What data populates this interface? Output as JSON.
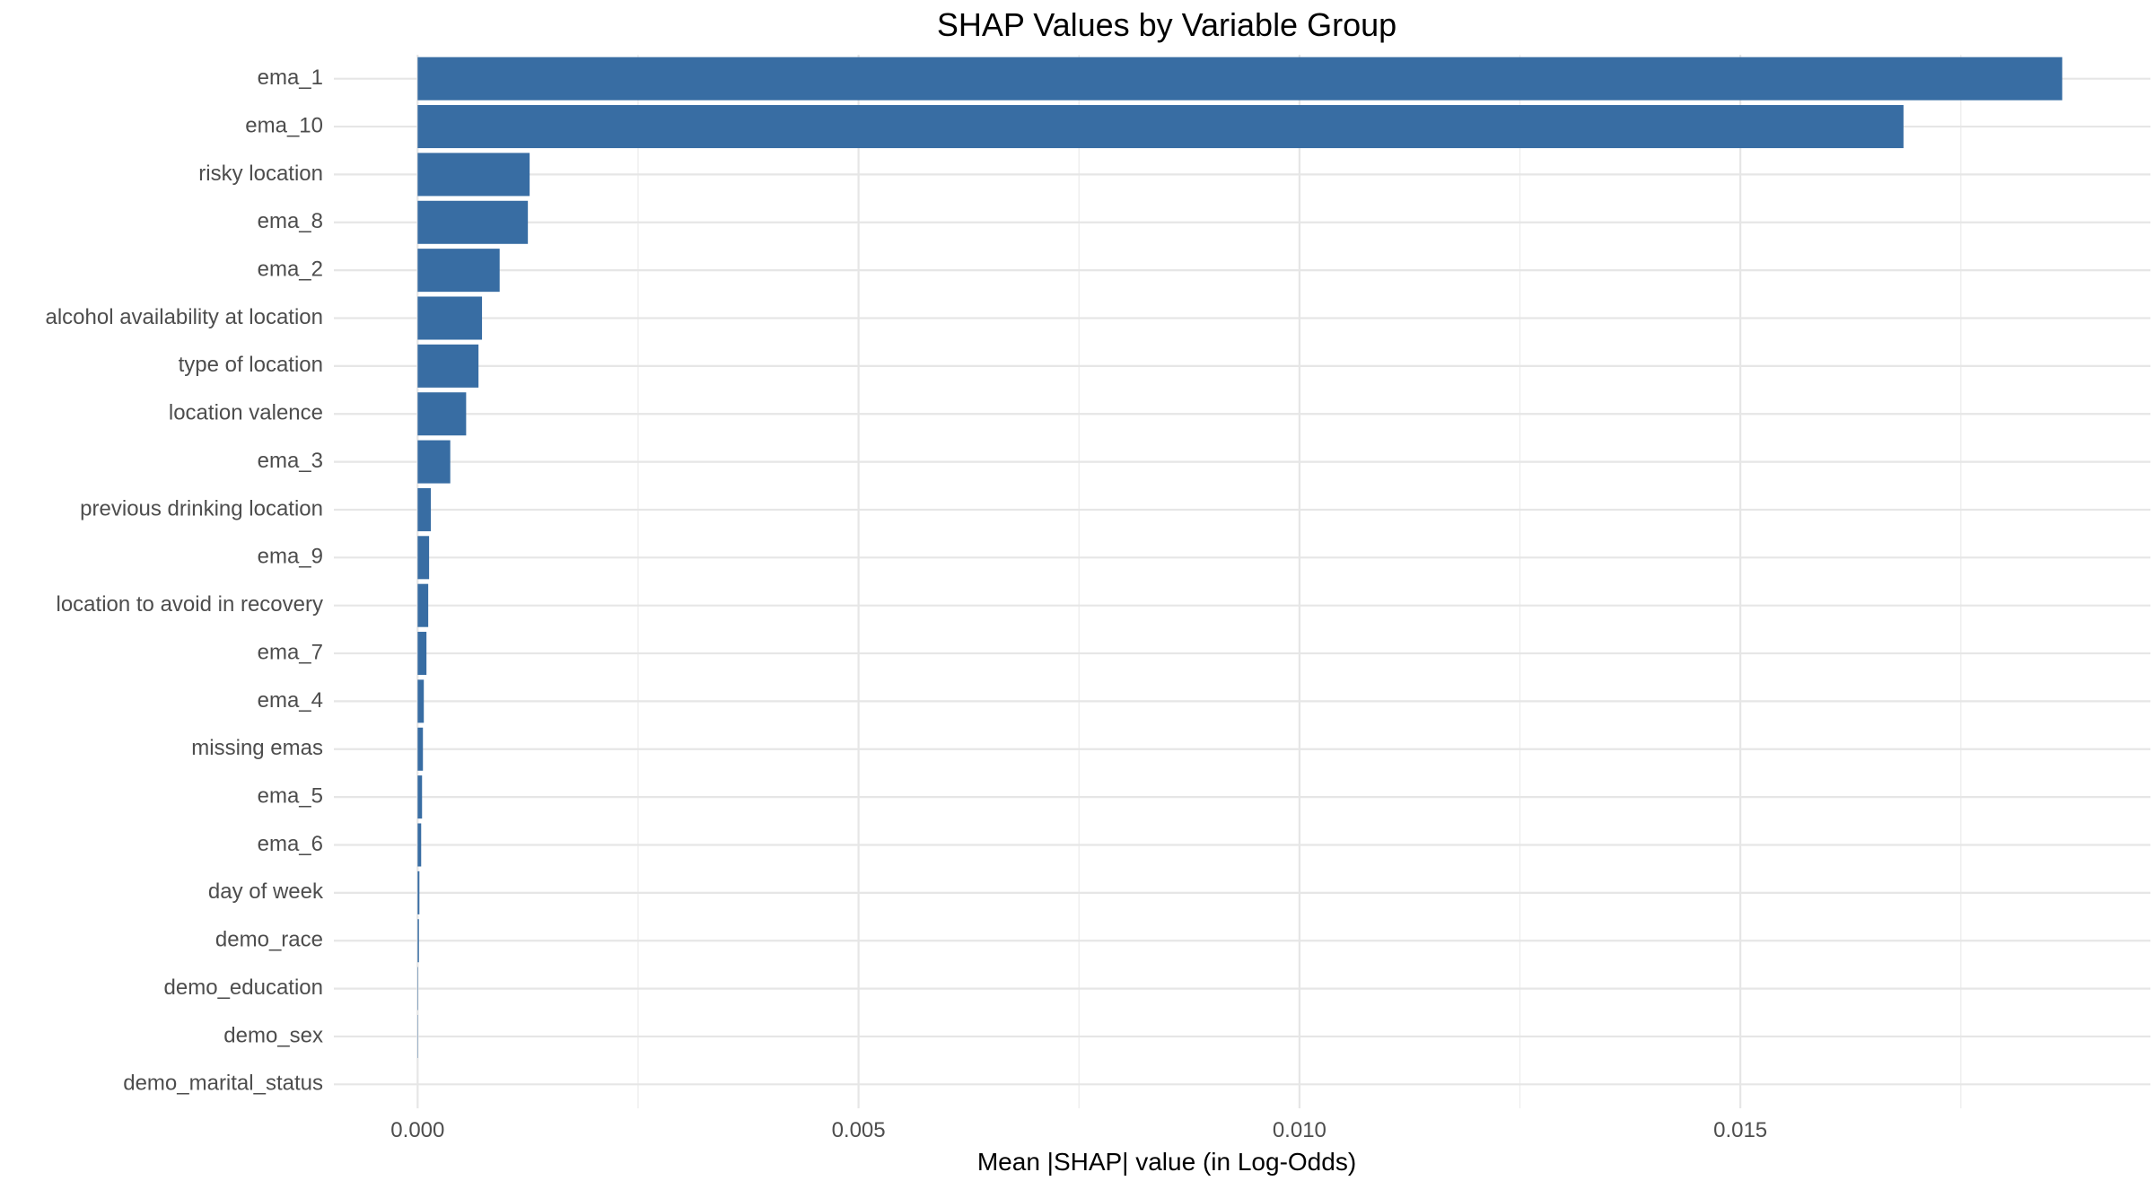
{
  "chart_data": {
    "type": "bar",
    "orientation": "horizontal",
    "title": "SHAP Values by Variable Group",
    "xlabel": "Mean |SHAP| value (in Log-Odds)",
    "ylabel": "",
    "xlim": [
      -0.00095,
      0.01965
    ],
    "x_ticks": [
      0.0,
      0.005,
      0.01,
      0.015
    ],
    "x_tick_labels": [
      "0.000",
      "0.005",
      "0.010",
      "0.015"
    ],
    "grid": true,
    "legend": "none",
    "bar_color": "#386da3",
    "categories": [
      "ema_1",
      "ema_10",
      "risky location",
      "ema_8",
      "ema_2",
      "alcohol availability at location",
      "type of location",
      "location valence",
      "ema_3",
      "previous drinking location",
      "ema_9",
      "location to avoid in recovery",
      "ema_7",
      "ema_4",
      "missing emas",
      "ema_5",
      "ema_6",
      "day of week",
      "demo_race",
      "demo_education",
      "demo_sex",
      "demo_marital_status"
    ],
    "values": [
      0.01865,
      0.01685,
      0.00127,
      0.00125,
      0.00093,
      0.00073,
      0.00069,
      0.00055,
      0.00037,
      0.00015,
      0.00013,
      0.00012,
      0.0001,
      7e-05,
      6e-05,
      5e-05,
      4e-05,
      2e-05,
      1.5e-05,
      5e-06,
      4e-06,
      0.0
    ]
  }
}
